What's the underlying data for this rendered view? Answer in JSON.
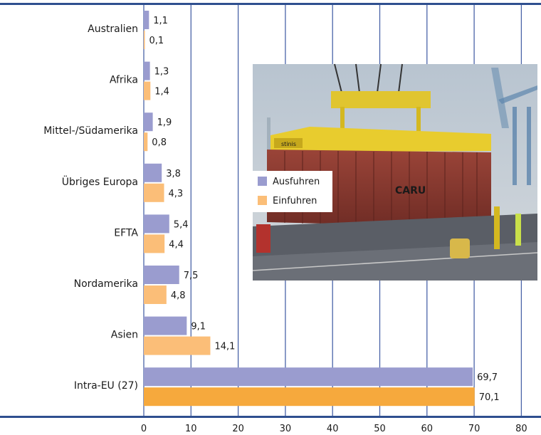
{
  "chart_data": {
    "type": "bar",
    "orientation": "horizontal",
    "categories": [
      "Australien",
      "Afrika",
      "Mittel-/Südamerika",
      "Übriges Europa",
      "EFTA",
      "Nordamerika",
      "Asien",
      "Intra-EU (27)"
    ],
    "series": [
      {
        "name": "Ausfuhren",
        "color": "#9a9ccf",
        "values": [
          1.1,
          1.3,
          1.9,
          3.8,
          5.4,
          7.5,
          9.1,
          69.7
        ],
        "labels": [
          "1,1",
          "1,3",
          "1,9",
          "3,8",
          "5,4",
          "7,5",
          "9,1",
          "69,7"
        ]
      },
      {
        "name": "Einfuhren",
        "color": "#fbbe78",
        "highlight_color": "#f6a93d",
        "values": [
          0.1,
          1.4,
          0.8,
          4.3,
          4.4,
          4.8,
          14.1,
          70.1
        ],
        "labels": [
          "0,1",
          "1,4",
          "0,8",
          "4,3",
          "4,4",
          "4,8",
          "14,1",
          "70,1"
        ]
      }
    ],
    "xlim": [
      0,
      80
    ],
    "xticks": [
      "0",
      "10",
      "20",
      "30",
      "40",
      "50",
      "60",
      "70",
      "80"
    ],
    "grid": true,
    "grid_color": "#4a64a8",
    "axis_color": "#2f4f8f",
    "legend_position": "inside-photo-left",
    "title": "",
    "xlabel": "",
    "ylabel": ""
  },
  "photo": {
    "description_icon": "container-crane-photo",
    "container_lettering": "CARU",
    "spreader_lettering": "stinis"
  }
}
